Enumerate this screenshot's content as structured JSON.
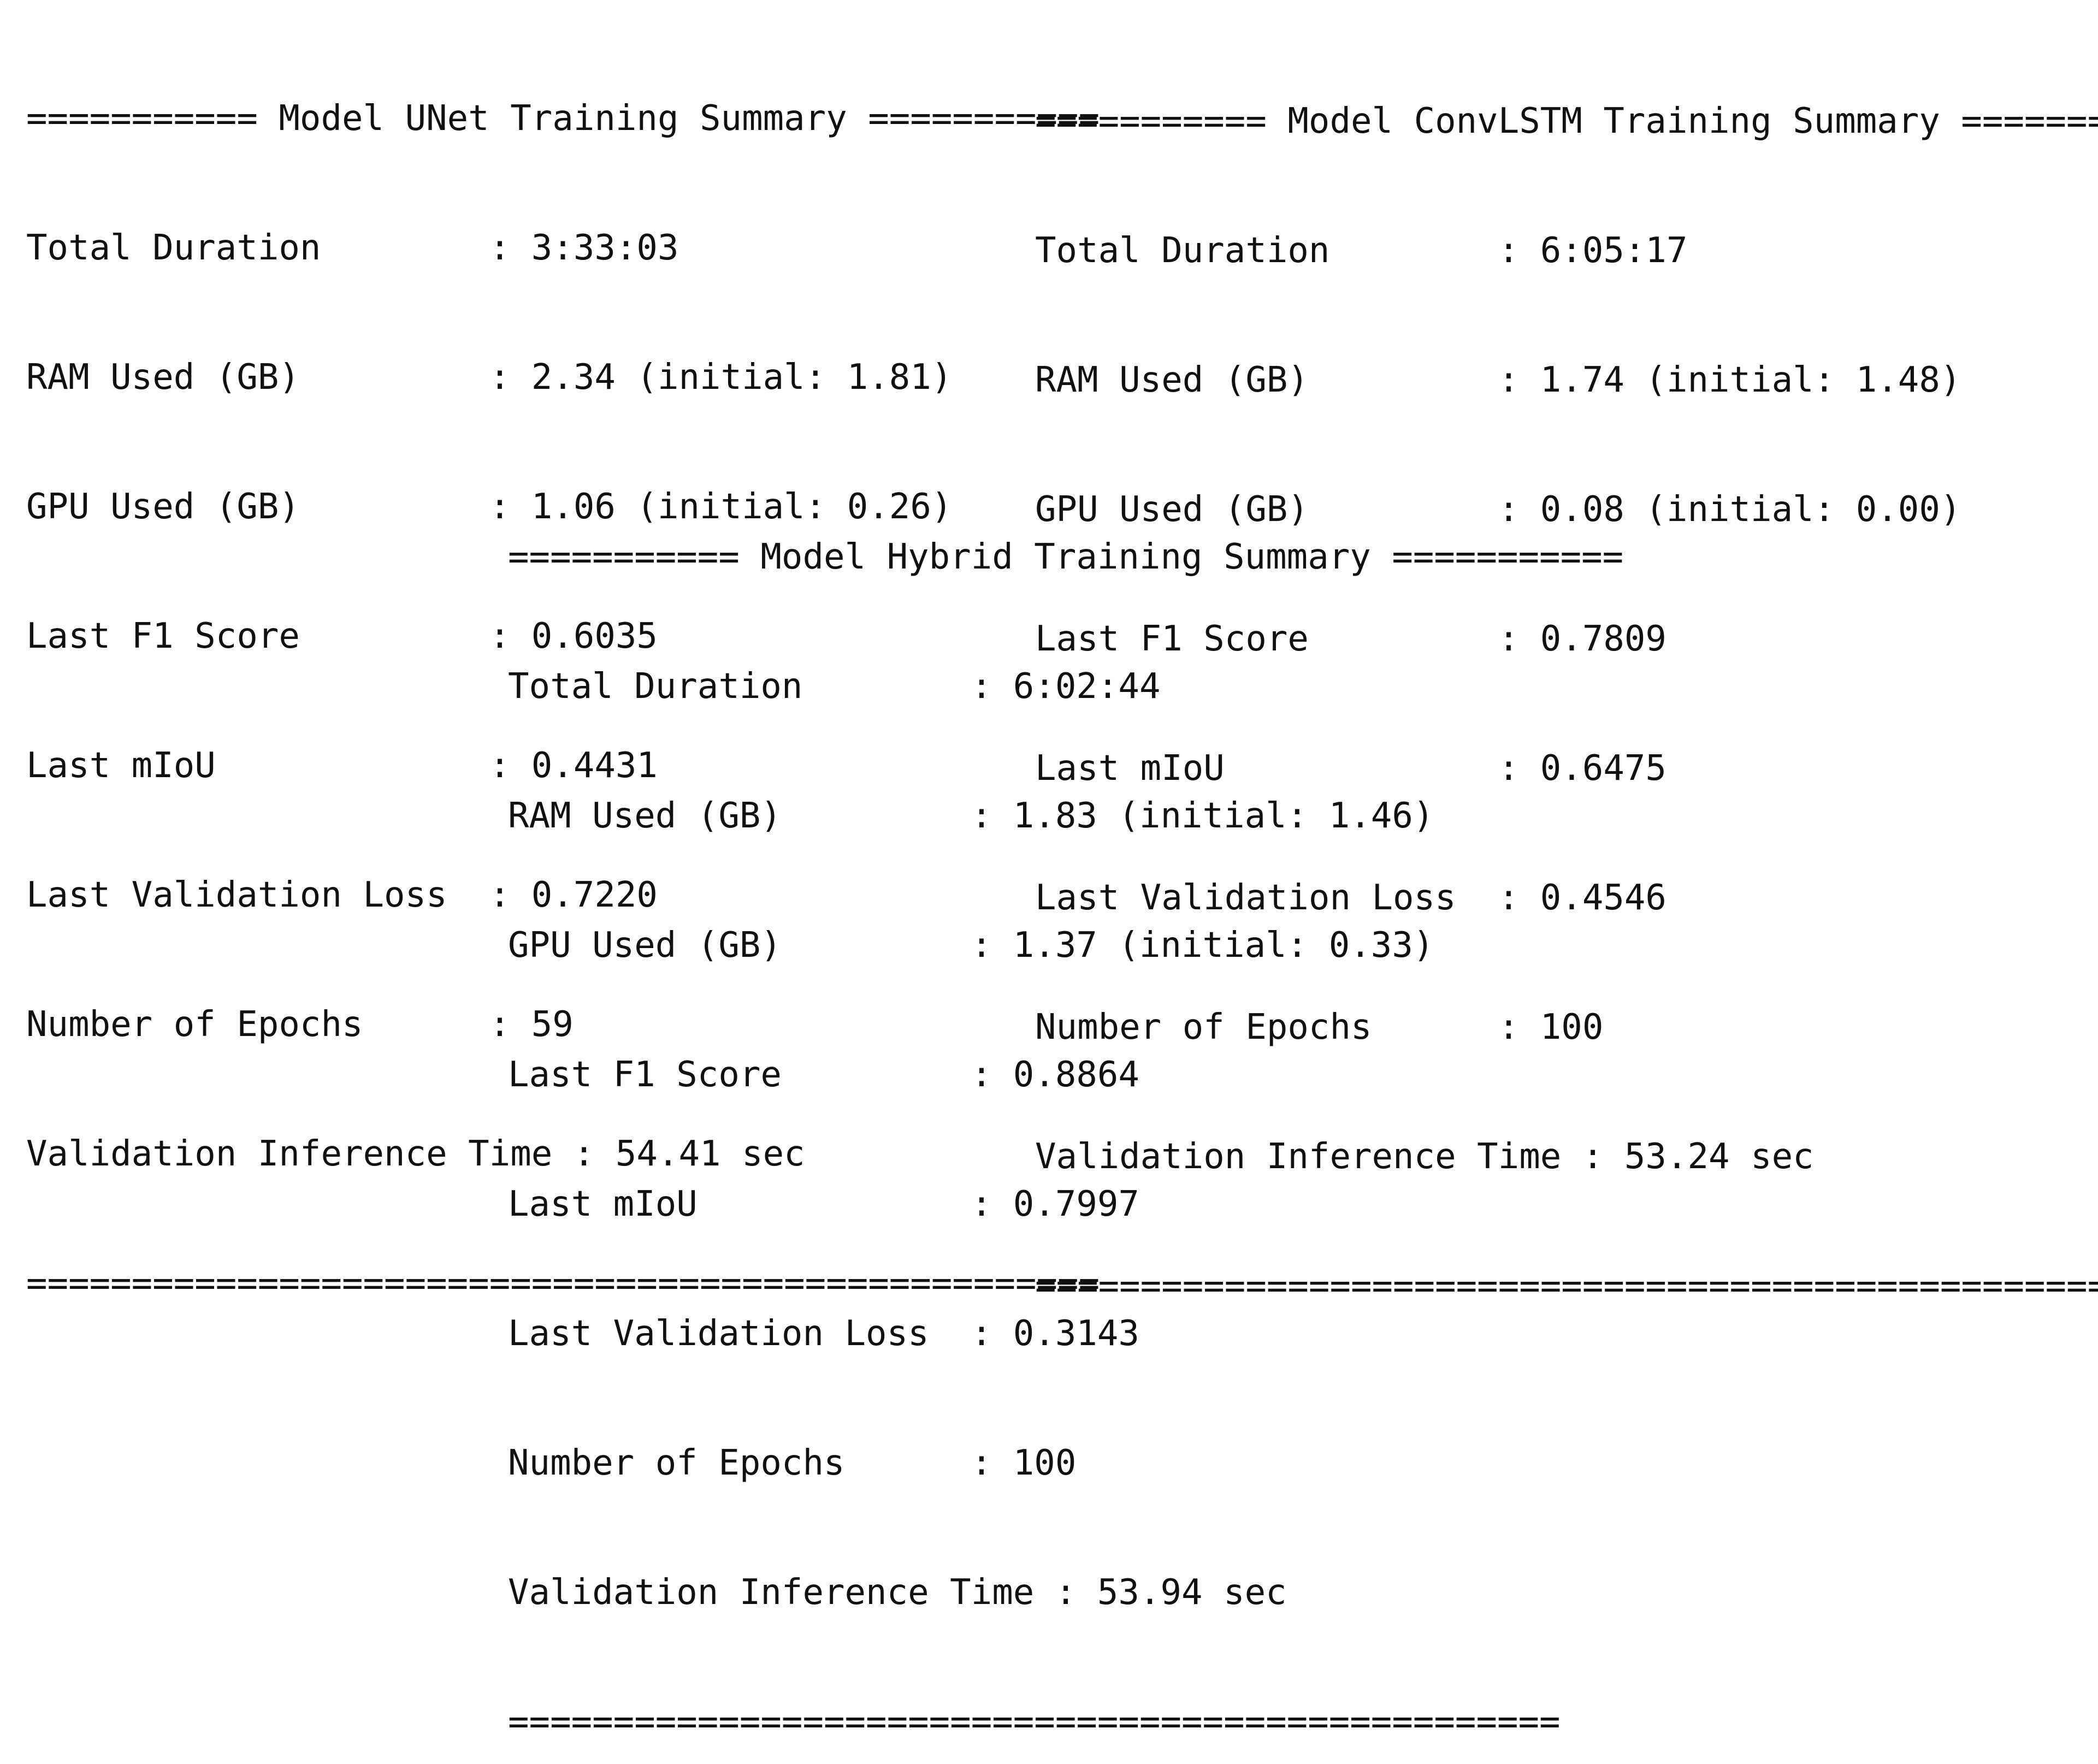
{
  "summaries": [
    {
      "header": "=========== Model UNet Training Summary ===========",
      "rows": [
        "Total Duration        : 3:33:03",
        "RAM Used (GB)         : 2.34 (initial: 1.81)",
        "GPU Used (GB)         : 1.06 (initial: 0.26)",
        "Last F1 Score         : 0.6035",
        "Last mIoU             : 0.4431",
        "Last Validation Loss  : 0.7220",
        "Number of Epochs      : 59",
        "Validation Inference Time : 54.41 sec"
      ],
      "footer": "==================================================="
    },
    {
      "header": "=========== Model ConvLSTM Training Summary ===========",
      "rows": [
        "Total Duration        : 6:05:17",
        "RAM Used (GB)         : 1.74 (initial: 1.48)",
        "GPU Used (GB)         : 0.08 (initial: 0.00)",
        "Last F1 Score         : 0.7809",
        "Last mIoU             : 0.6475",
        "Last Validation Loss  : 0.4546",
        "Number of Epochs      : 100",
        "Validation Inference Time : 53.24 sec"
      ],
      "footer": "==================================================="
    },
    {
      "header": "=========== Model Hybrid Training Summary ===========",
      "rows": [
        "Total Duration        : 6:02:44",
        "RAM Used (GB)         : 1.83 (initial: 1.46)",
        "GPU Used (GB)         : 1.37 (initial: 0.33)",
        "Last F1 Score         : 0.8864",
        "Last mIoU             : 0.7997",
        "Last Validation Loss  : 0.3143",
        "Number of Epochs      : 100",
        "Validation Inference Time : 53.94 sec"
      ],
      "footer": "=================================================="
    }
  ]
}
